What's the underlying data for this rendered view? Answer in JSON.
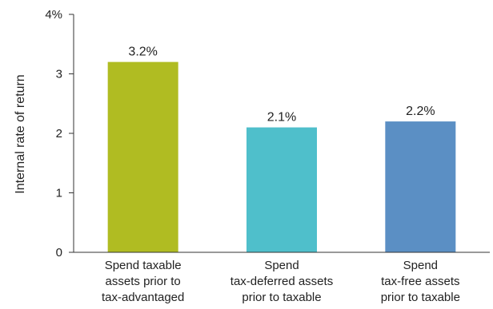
{
  "chart_data": {
    "type": "bar",
    "title": "",
    "xlabel": "",
    "ylabel": "Internal rate of return",
    "ylim": [
      0,
      4
    ],
    "yticks": [
      {
        "value": 0,
        "label": "0"
      },
      {
        "value": 1,
        "label": "1"
      },
      {
        "value": 2,
        "label": "2"
      },
      {
        "value": 3,
        "label": "3"
      },
      {
        "value": 4,
        "label": "4%"
      }
    ],
    "categories": [
      [
        "Spend taxable",
        "assets prior to",
        "tax-advantaged"
      ],
      [
        "Spend",
        "tax-deferred assets",
        "prior to taxable"
      ],
      [
        "Spend",
        "tax-free assets",
        "prior to taxable"
      ]
    ],
    "values": [
      3.2,
      2.1,
      2.2
    ],
    "data_labels": [
      "3.2%",
      "2.1%",
      "2.2%"
    ],
    "colors": [
      "#b0bc22",
      "#4fbfcb",
      "#5b8fc4"
    ],
    "grid": false,
    "legend": "none"
  }
}
